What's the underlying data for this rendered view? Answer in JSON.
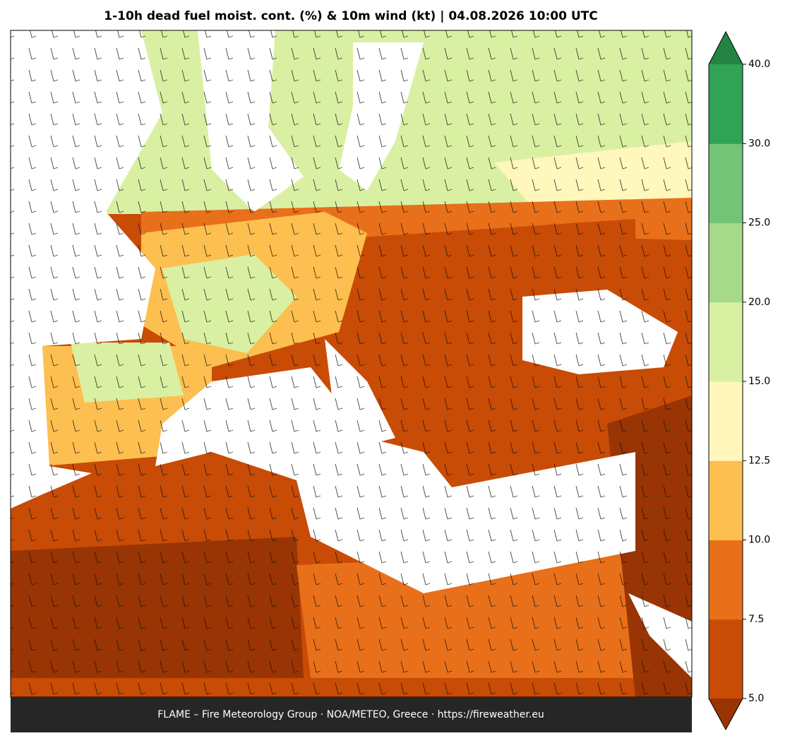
{
  "title": "1-10h dead fuel moist. cont. (%) & 10m wind (kt)  |  04.08.2026 10:00 UTC",
  "footer": "FLAME – Fire Meteorology Group · NOA/METEO, Greece · https://fireweather.eu",
  "colorbar": {
    "ticks": [
      {
        "value": 5,
        "label": "5.0"
      },
      7.5,
      {
        "value": 10,
        "label": "10.0"
      },
      12.5,
      {
        "value": 15,
        "label": "15.0"
      },
      {
        "value": 20,
        "label": "20.0"
      },
      {
        "value": 25,
        "label": "25.0"
      },
      {
        "value": 30,
        "label": "30.0"
      },
      {
        "value": 40,
        "label": "40.0"
      }
    ],
    "colors": [
      "#c84b06",
      "#e8701a",
      "#fdbf4f",
      "#fff7bc",
      "#d9f0a3",
      "#a6d98a",
      "#74c476",
      "#31a354"
    ],
    "under_color": "#993404",
    "over_color": "#238443"
  }
}
